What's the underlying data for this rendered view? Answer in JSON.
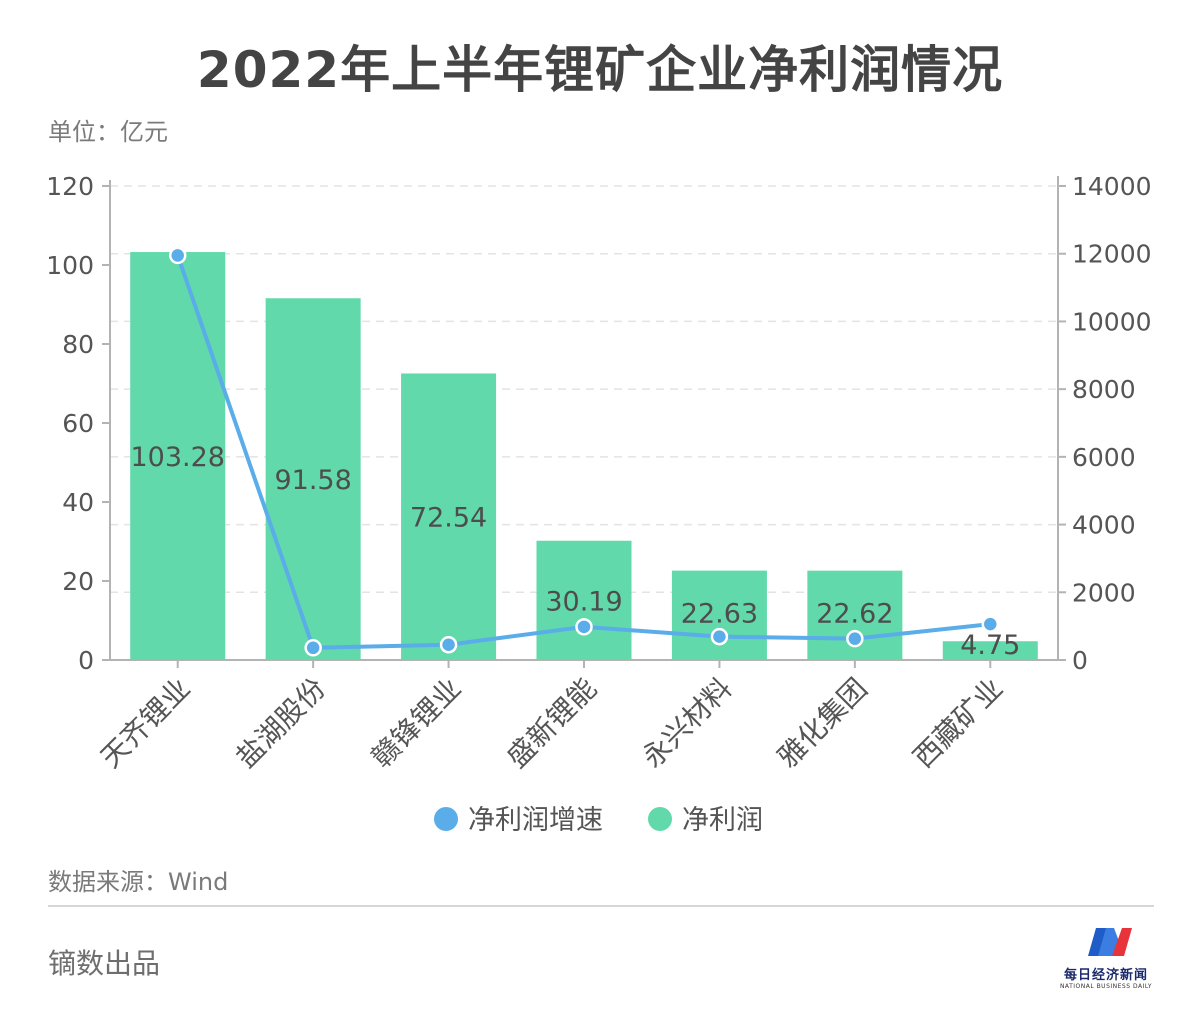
{
  "header": {
    "title": "2022年上半年锂矿企业净利润情况",
    "unit": "单位：亿元"
  },
  "chart_data": {
    "type": "bar",
    "categories": [
      "天齐锂业",
      "盐湖股份",
      "赣锋锂业",
      "盛新锂能",
      "永兴材料",
      "雅化集团",
      "西藏矿业"
    ],
    "series": [
      {
        "name": "净利润",
        "kind": "bar",
        "axis": "left",
        "values": [
          103.28,
          91.58,
          72.54,
          30.19,
          22.63,
          22.62,
          4.75
        ]
      },
      {
        "name": "净利润增速",
        "kind": "line",
        "axis": "right",
        "values": [
          11950,
          360,
          450,
          980,
          690,
          630,
          1060
        ]
      }
    ],
    "data_labels": [
      "103.28",
      "91.58",
      "72.54",
      "30.19",
      "22.63",
      "22.62",
      "4.75"
    ],
    "y_left": {
      "min": 0,
      "max": 120,
      "ticks": [
        0,
        20,
        40,
        60,
        80,
        100,
        120
      ]
    },
    "y_right": {
      "min": 0,
      "max": 14000,
      "ticks": [
        0,
        2000,
        4000,
        6000,
        8000,
        10000,
        12000,
        14000
      ]
    },
    "grid": true,
    "legend": {
      "position": "bottom"
    },
    "colors": {
      "bar": "#61d9aa",
      "line": "#5aade8",
      "axis": "#b3b3b3",
      "grid": "#e3e3e3",
      "tick_text": "#555555",
      "label_text": "#4d4d4d"
    }
  },
  "footer": {
    "source": "数据来源：Wind",
    "producer": "镝数出品",
    "logo_text": "每日经济新闻",
    "logo_sub": "NATIONAL BUSINESS DAILY"
  }
}
